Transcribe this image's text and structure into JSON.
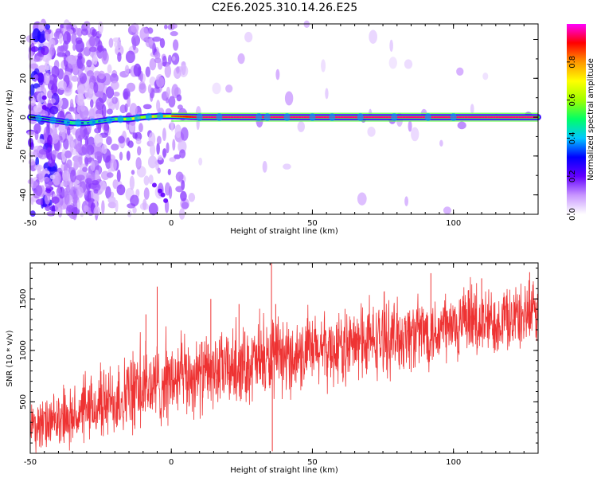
{
  "title": "C2E6.2025.310.14.26.E25",
  "chart_data": [
    {
      "type": "heatmap",
      "xlabel": "Height of straight line (km)",
      "ylabel": "Frequency (Hz)",
      "xlim": [
        -50,
        130
      ],
      "ylim": [
        -50,
        48
      ],
      "xticks": [
        "-50",
        "0",
        "50",
        "100"
      ],
      "xtick_values": [
        -50,
        0,
        50,
        100
      ],
      "yticks": [
        "-40",
        "-20",
        "0",
        "20",
        "40"
      ],
      "ytick_values": [
        -40,
        -20,
        0,
        20,
        40
      ],
      "colorbar": {
        "label": "Normalized spectral amplitude",
        "range": [
          0,
          1
        ],
        "ticks": [
          "0.0",
          "0.2",
          "0.4",
          "0.6",
          "0.8"
        ],
        "tick_values": [
          0,
          0.2,
          0.4,
          0.6,
          0.8
        ],
        "colors": [
          "#ffffff",
          "#c896ff",
          "#6400ff",
          "#0000ff",
          "#00c8ff",
          "#00ff66",
          "#a0ff00",
          "#ffff00",
          "#ff9600",
          "#ff0000",
          "#ff00ff"
        ]
      },
      "ridge": {
        "description_points_x": [
          -50,
          -45,
          -40,
          -35,
          -30,
          -25,
          -20,
          -15,
          -10,
          -5,
          0,
          10,
          30,
          50,
          100,
          130
        ],
        "description_points_y": [
          0,
          -1,
          -2,
          -3,
          -3,
          -2,
          -1,
          -1,
          0,
          0.5,
          0.5,
          0,
          0,
          0,
          0,
          0
        ],
        "amplitude": [
          0.3,
          0.35,
          0.4,
          0.45,
          0.5,
          0.55,
          0.6,
          0.65,
          0.7,
          0.75,
          0.85,
          0.95,
          0.95,
          0.95,
          0.95,
          0.95
        ]
      }
    },
    {
      "type": "line",
      "xlabel": "Height of straight line (km)",
      "ylabel": "SNR (10 * v/v)",
      "xlim": [
        -50,
        130
      ],
      "ylim": [
        0,
        1850
      ],
      "xticks": [
        "-50",
        "0",
        "50",
        "100"
      ],
      "xtick_values": [
        -50,
        0,
        50,
        100
      ],
      "yticks": [
        "500",
        "1000",
        "1500"
      ],
      "ytick_values": [
        500,
        1000,
        1500
      ],
      "series": [
        {
          "color": "#ee3333",
          "trend_x": [
            -50,
            -40,
            -30,
            -20,
            -10,
            0,
            10,
            20,
            30,
            40,
            50,
            60,
            70,
            80,
            90,
            100,
            110,
            120,
            130
          ],
          "trend_y": [
            250,
            300,
            400,
            520,
            620,
            700,
            760,
            820,
            880,
            920,
            980,
            1020,
            1080,
            1130,
            1180,
            1220,
            1260,
            1310,
            1350
          ],
          "spread": [
            260,
            260,
            300,
            380,
            420,
            400,
            380,
            360,
            380,
            360,
            360,
            360,
            360,
            360,
            360,
            360,
            340,
            320,
            300
          ],
          "spikes": [
            {
              "x": -5,
              "y": 1620
            },
            {
              "x": 35.5,
              "y": 1850
            },
            {
              "x": 35.8,
              "y": 20
            },
            {
              "x": 37,
              "y": 1450
            },
            {
              "x": 14,
              "y": 1500
            },
            {
              "x": 24,
              "y": 1450
            },
            {
              "x": 92,
              "y": 1750
            },
            {
              "x": 110,
              "y": 1700
            },
            {
              "x": 127,
              "y": 1760
            },
            {
              "x": -9,
              "y": 1350
            }
          ]
        }
      ]
    }
  ]
}
